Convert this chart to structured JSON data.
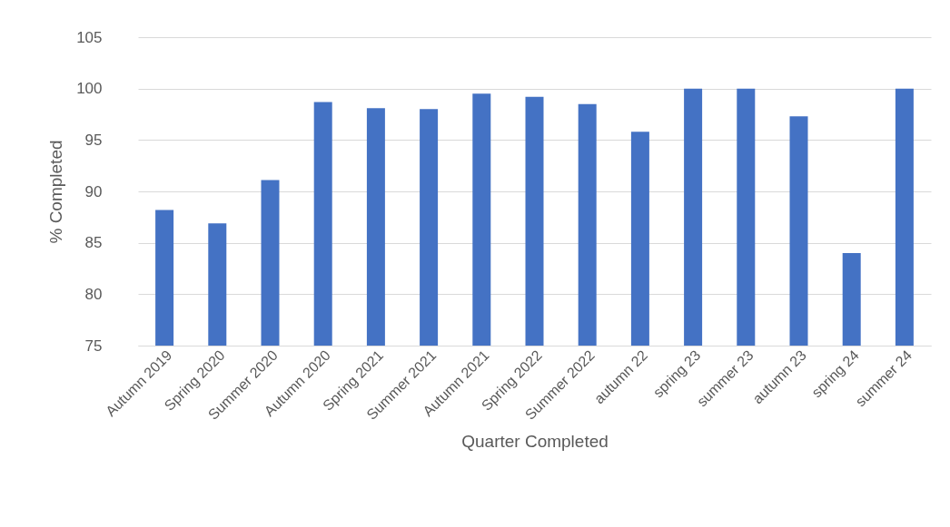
{
  "chart_data": {
    "type": "bar",
    "xlabel": "Quarter Completed",
    "ylabel": "% Completed",
    "categories": [
      "Autumn 2019",
      "Spring 2020",
      "Summer 2020",
      "Autumn 2020",
      "Spring 2021",
      "Summer 2021",
      "Autumn 2021",
      "Spring 2022",
      "Summer 2022",
      "autumn 22",
      "spring 23",
      "summer 23",
      "autumn 23",
      "spring 24",
      "summer 24"
    ],
    "values": [
      88.2,
      86.9,
      91.1,
      98.7,
      98.1,
      98.0,
      99.5,
      99.2,
      98.5,
      95.8,
      100,
      100,
      97.3,
      84.0,
      100
    ],
    "color": "#4472c4",
    "ylim": [
      75,
      105
    ],
    "yticks": [
      75,
      80,
      85,
      90,
      95,
      100,
      105
    ],
    "grid": "y"
  }
}
